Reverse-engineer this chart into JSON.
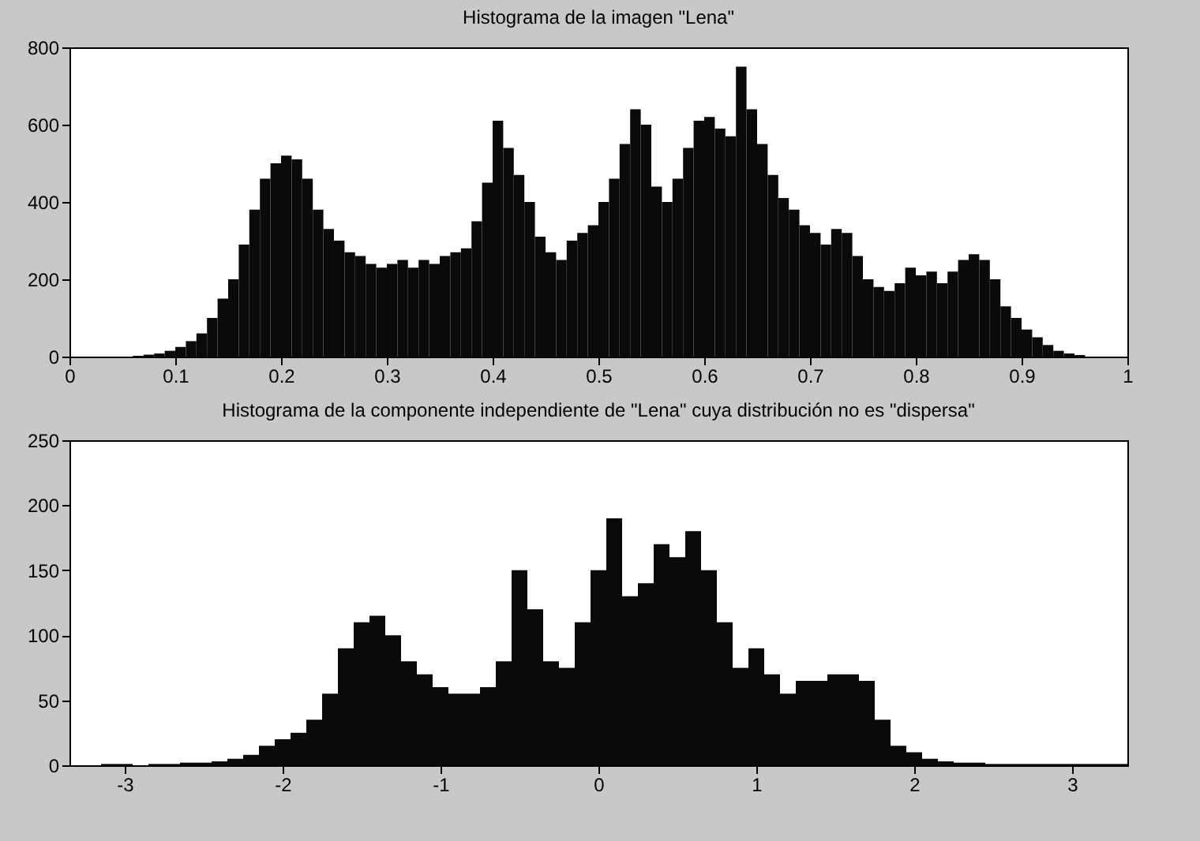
{
  "chart_data": [
    {
      "type": "histogram",
      "title": "Histograma de la imagen \"Lena\"",
      "color": "#0a0a0a",
      "bins": [
        0,
        0.01,
        0.02,
        0.03,
        0.04,
        0.05,
        0.06,
        0.07,
        0.08,
        0.09,
        0.1,
        0.11,
        0.12,
        0.13,
        0.14,
        0.15,
        0.16,
        0.17,
        0.18,
        0.19,
        0.2,
        0.21,
        0.22,
        0.23,
        0.24,
        0.25,
        0.26,
        0.27,
        0.28,
        0.29,
        0.3,
        0.31,
        0.32,
        0.33,
        0.34,
        0.35,
        0.36,
        0.37,
        0.38,
        0.39,
        0.4,
        0.41,
        0.42,
        0.43,
        0.44,
        0.45,
        0.46,
        0.47,
        0.48,
        0.49,
        0.5,
        0.51,
        0.52,
        0.53,
        0.54,
        0.55,
        0.56,
        0.57,
        0.58,
        0.59,
        0.6,
        0.61,
        0.62,
        0.63,
        0.64,
        0.65,
        0.66,
        0.67,
        0.68,
        0.69,
        0.7,
        0.71,
        0.72,
        0.73,
        0.74,
        0.75,
        0.76,
        0.77,
        0.78,
        0.79,
        0.8,
        0.81,
        0.82,
        0.83,
        0.84,
        0.85,
        0.86,
        0.87,
        0.88,
        0.89,
        0.9,
        0.91,
        0.92,
        0.93,
        0.94,
        0.95,
        0.96,
        0.97,
        0.98,
        0.99,
        1
      ],
      "values": [
        0,
        0,
        0,
        0,
        0,
        0,
        2,
        5,
        8,
        15,
        25,
        40,
        60,
        100,
        150,
        200,
        290,
        380,
        460,
        500,
        520,
        510,
        460,
        380,
        330,
        300,
        270,
        260,
        240,
        230,
        240,
        250,
        230,
        250,
        240,
        260,
        270,
        280,
        350,
        450,
        610,
        540,
        470,
        400,
        310,
        270,
        250,
        300,
        320,
        340,
        400,
        460,
        550,
        640,
        600,
        440,
        400,
        460,
        540,
        610,
        620,
        590,
        570,
        750,
        640,
        550,
        470,
        410,
        380,
        340,
        320,
        290,
        330,
        320,
        260,
        200,
        180,
        170,
        190,
        230,
        210,
        220,
        190,
        220,
        250,
        265,
        250,
        200,
        130,
        100,
        70,
        50,
        30,
        15,
        8,
        4,
        0,
        0,
        0,
        0
      ],
      "xlim": [
        0,
        1
      ],
      "ylim": [
        0,
        800
      ],
      "xticks": [
        0,
        0.1,
        0.2,
        0.3,
        0.4,
        0.5,
        0.6,
        0.7,
        0.8,
        0.9,
        1
      ],
      "yticks": [
        0,
        200,
        400,
        600,
        800
      ]
    },
    {
      "type": "histogram",
      "title": "Histograma de la componente independiente de \"Lena\" cuya distribución no es \"dispersa\"",
      "color": "#0a0a0a",
      "bins": [
        -3.35,
        -3.25,
        -3.15,
        -3.05,
        -2.95,
        -2.85,
        -2.75,
        -2.65,
        -2.55,
        -2.45,
        -2.35,
        -2.25,
        -2.15,
        -2.05,
        -1.95,
        -1.85,
        -1.75,
        -1.65,
        -1.55,
        -1.45,
        -1.35,
        -1.25,
        -1.15,
        -1.05,
        -0.95,
        -0.85,
        -0.75,
        -0.65,
        -0.55,
        -0.45,
        -0.35,
        -0.25,
        -0.15,
        -0.05,
        0.05,
        0.15,
        0.25,
        0.35,
        0.45,
        0.55,
        0.65,
        0.75,
        0.85,
        0.95,
        1.05,
        1.15,
        1.25,
        1.35,
        1.45,
        1.55,
        1.65,
        1.75,
        1.85,
        1.95,
        2.05,
        2.15,
        2.25,
        2.35,
        2.45,
        2.55,
        2.65,
        2.75,
        2.85,
        2.95,
        3.05,
        3.15,
        3.25,
        3.35
      ],
      "values": [
        0,
        0,
        1,
        1,
        0,
        1,
        1,
        2,
        2,
        3,
        5,
        8,
        15,
        20,
        25,
        35,
        55,
        90,
        110,
        115,
        100,
        80,
        70,
        60,
        55,
        55,
        60,
        80,
        150,
        120,
        80,
        75,
        110,
        150,
        190,
        130,
        140,
        170,
        160,
        180,
        150,
        110,
        75,
        90,
        70,
        55,
        65,
        65,
        70,
        70,
        65,
        35,
        15,
        10,
        5,
        3,
        2,
        2,
        1,
        1,
        1,
        1,
        1,
        1,
        1,
        1,
        1
      ],
      "xlim": [
        -3.35,
        3.35
      ],
      "ylim": [
        0,
        250
      ],
      "xticks": [
        -3,
        -2,
        -1,
        0,
        1,
        2,
        3
      ],
      "yticks": [
        0,
        50,
        100,
        150,
        200,
        250
      ]
    }
  ]
}
